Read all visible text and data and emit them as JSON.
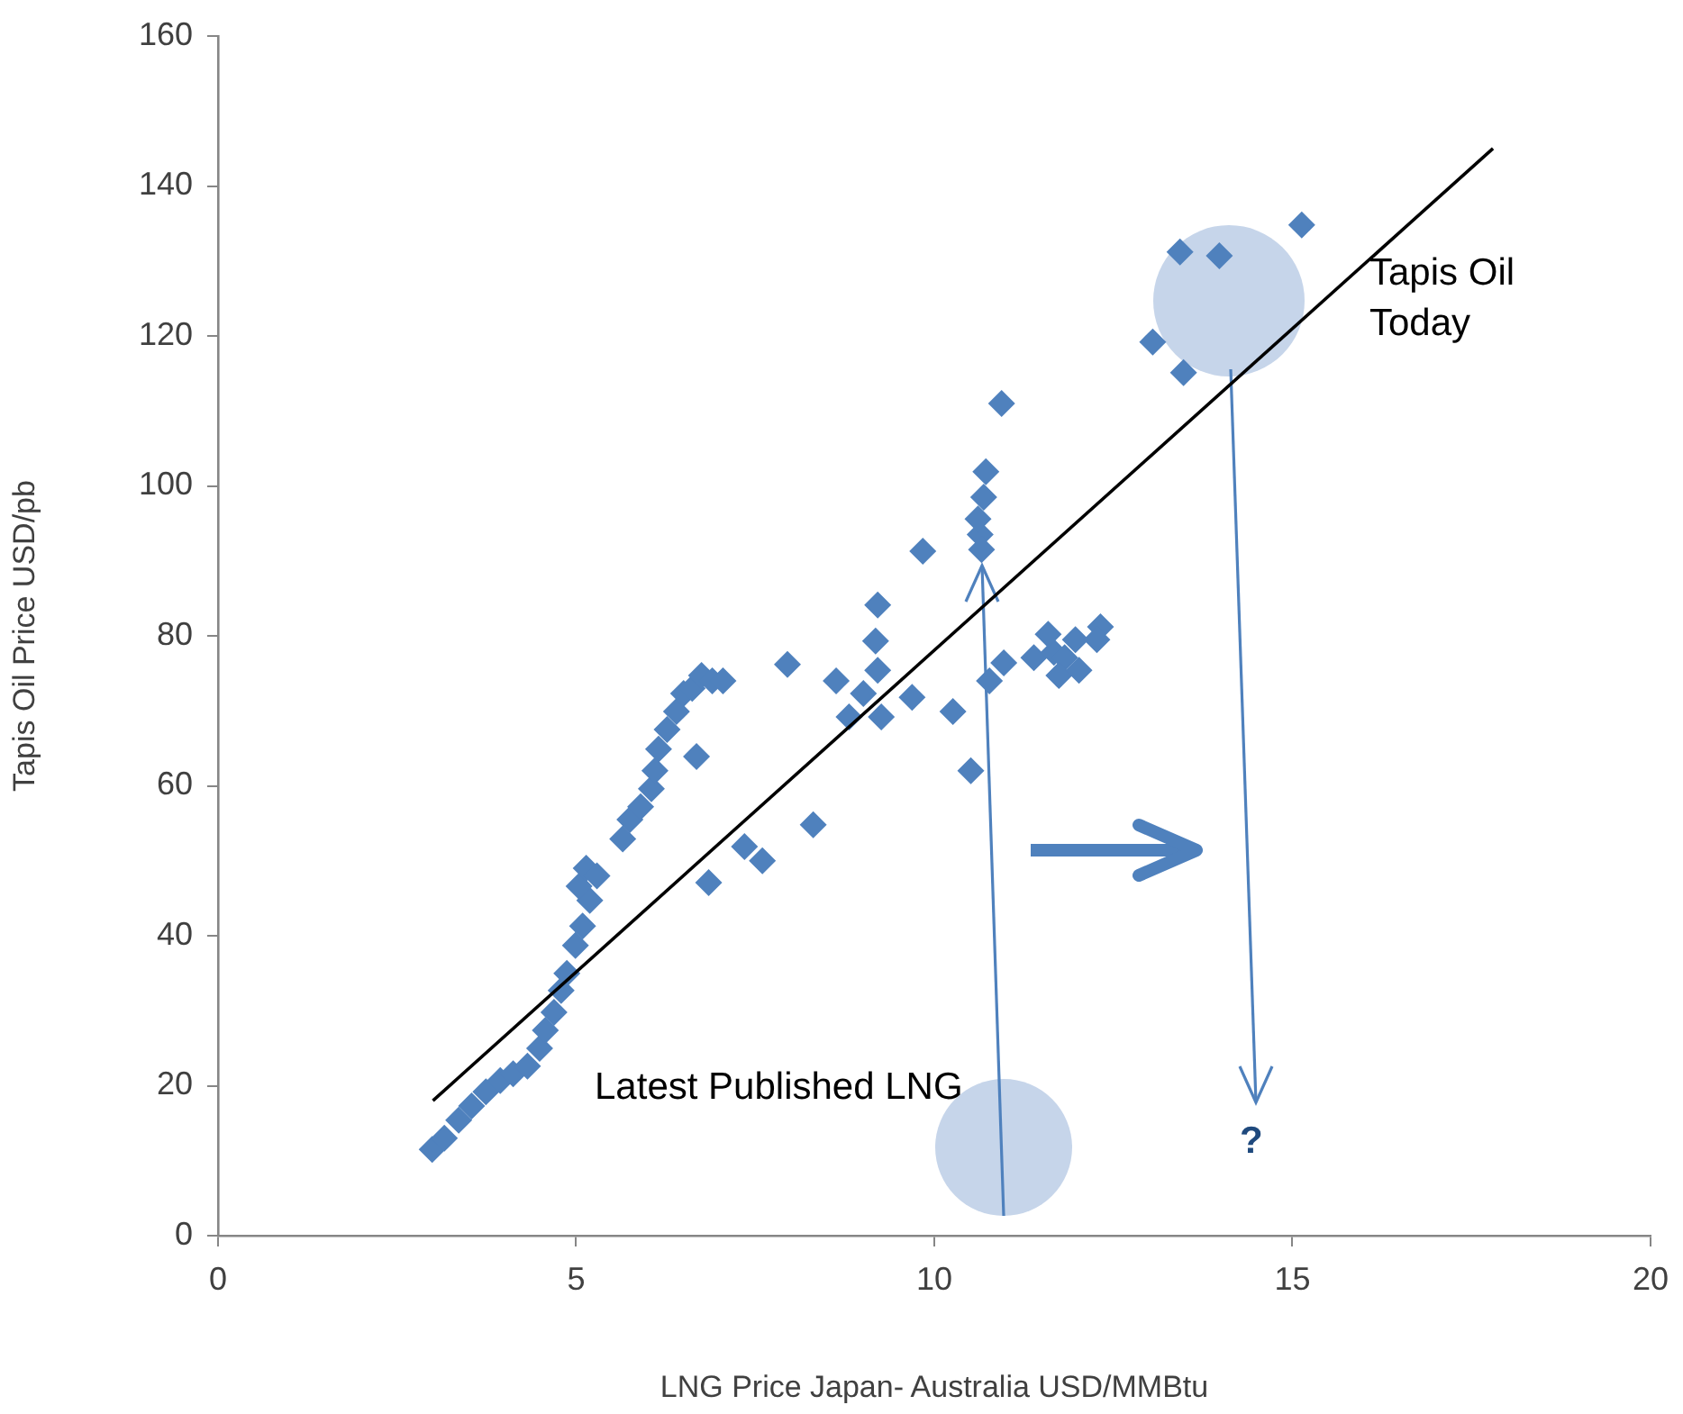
{
  "chart_data": {
    "type": "scatter",
    "xlabel": "LNG Price Japan- Australia USD/MMBtu",
    "ylabel": "Tapis Oil Price USD/pb",
    "xlim": [
      0,
      20
    ],
    "xticks": [
      0,
      5,
      10,
      15,
      20
    ],
    "ylim": [
      0,
      160
    ],
    "yticks": [
      0,
      20,
      40,
      60,
      80,
      100,
      120,
      140,
      160
    ],
    "grid": false,
    "legend": false,
    "marker": "diamond",
    "series": [
      {
        "color": "#4f81bd",
        "x": [
          2.99,
          3.16,
          3.36,
          3.54,
          3.74,
          3.94,
          4.12,
          4.32,
          4.49,
          4.57,
          4.69,
          4.79,
          4.87,
          4.99,
          5.09,
          5.19,
          5.04,
          5.14,
          5.29,
          5.65,
          5.75,
          5.9,
          6.05,
          6.1,
          6.15,
          6.27,
          6.4,
          6.5,
          6.62,
          6.75,
          6.9,
          7.05,
          6.68,
          6.85,
          7.35,
          7.6,
          7.95,
          8.31,
          8.63,
          8.81,
          9.01,
          9.21,
          9.18,
          9.21,
          9.26,
          9.84,
          9.69,
          10.26,
          10.51,
          10.64,
          10.69,
          10.72,
          10.61,
          10.94,
          10.66,
          10.77,
          10.97,
          11.39,
          11.67,
          11.82,
          11.97,
          11.74,
          12.32,
          11.59,
          12.02,
          12.27,
          13.05,
          13.43,
          13.48,
          13.98,
          15.13
        ],
        "values": [
          11.5,
          13,
          15.4,
          17.3,
          19.2,
          20.7,
          21.6,
          22.6,
          25,
          27.4,
          29.8,
          32.7,
          35,
          38.7,
          41.3,
          44.7,
          46.6,
          49,
          48,
          52.9,
          55.5,
          57.2,
          59.6,
          62,
          64.9,
          67.5,
          69.9,
          72.3,
          73,
          74.7,
          74,
          74,
          63.9,
          47.1,
          51.9,
          50,
          76.2,
          54.8,
          74,
          69.2,
          72.3,
          75.4,
          79.3,
          84.1,
          69.2,
          91.3,
          71.8,
          69.9,
          62,
          93.5,
          98.5,
          101.9,
          95.6,
          111,
          91.5,
          74,
          76.4,
          77.1,
          77.8,
          77.1,
          79.5,
          74.7,
          81.2,
          80.2,
          75.4,
          79.5,
          119.2,
          131.2,
          115.1,
          130.7,
          134.8
        ]
      },
      {
        "type": "line",
        "color": "#000000",
        "marker": "none",
        "x": [
          3,
          17.8
        ],
        "values": [
          18,
          145
        ]
      }
    ],
    "annotations": [
      "Tapis Oil Today",
      "Latest Published LNG",
      "?"
    ]
  }
}
